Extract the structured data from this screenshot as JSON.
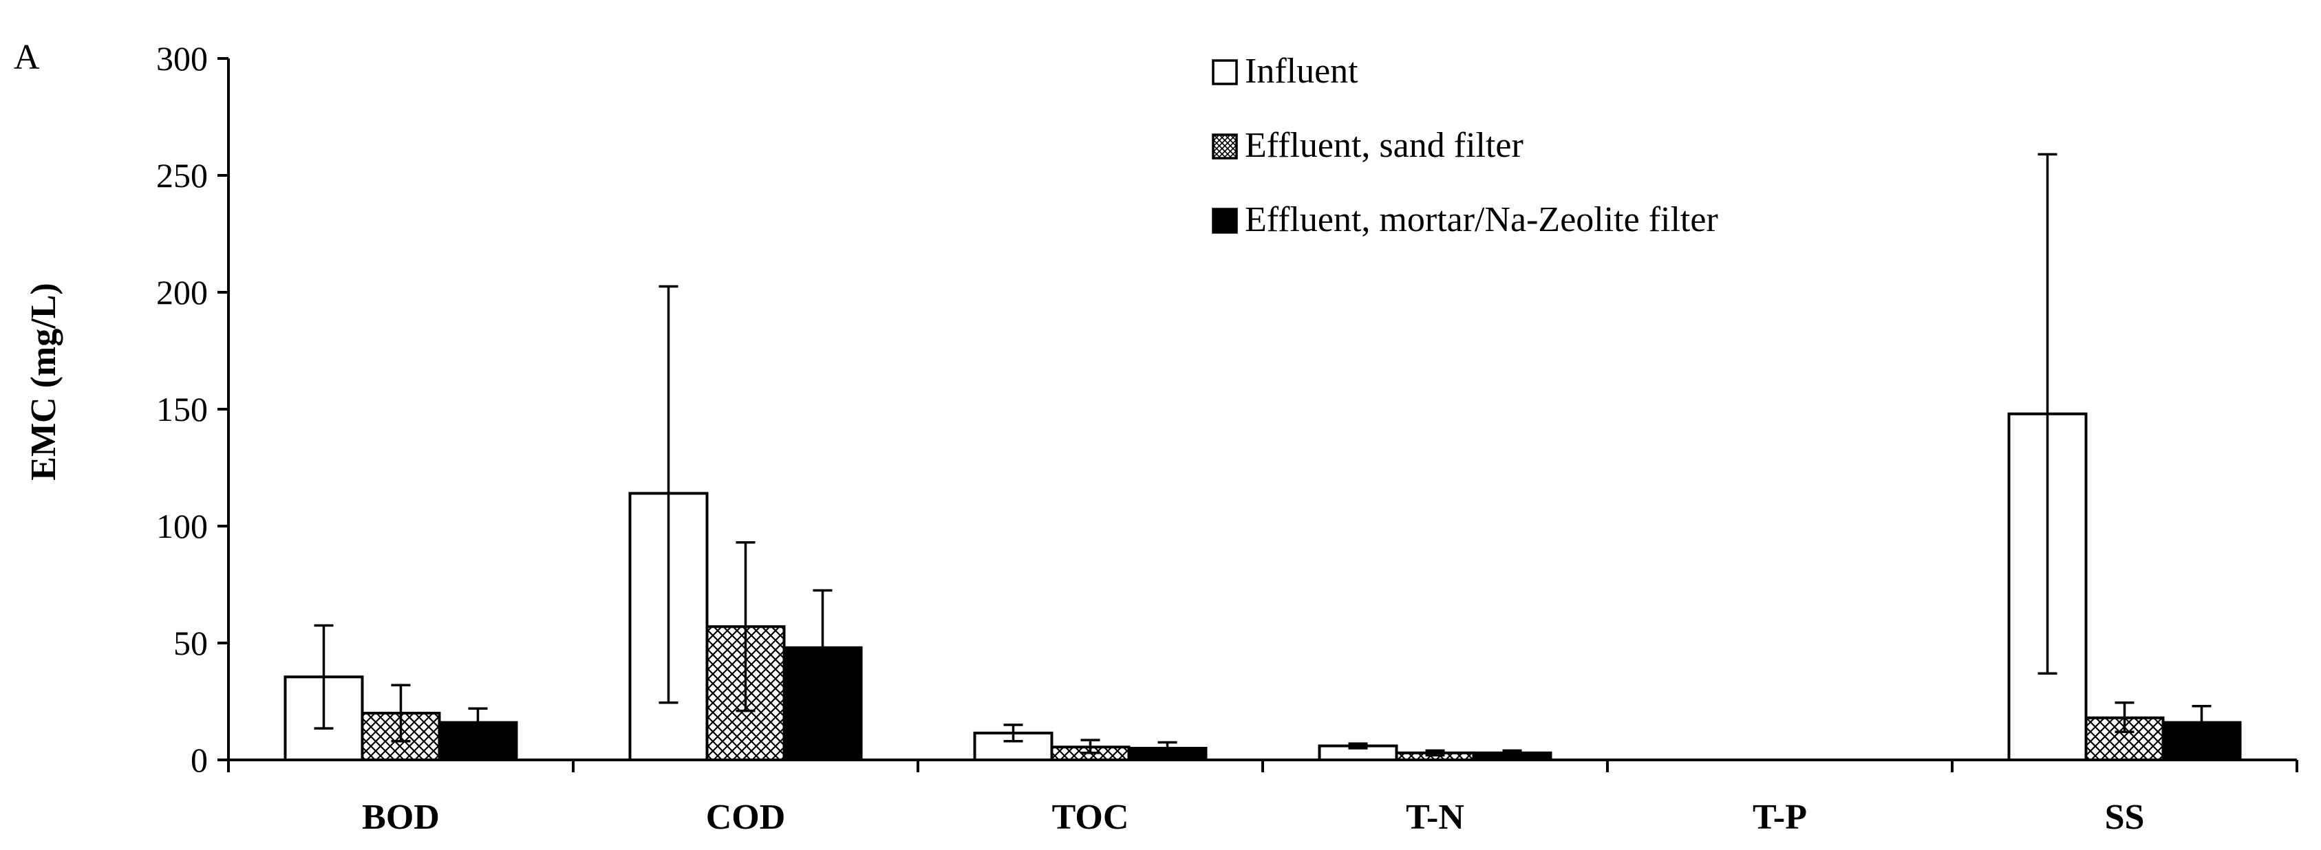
{
  "chart_data": {
    "type": "bar",
    "panel_label": "A",
    "title": "",
    "xlabel": "",
    "ylabel": "EMC (mg/L)",
    "ylim": [
      0,
      300
    ],
    "yticks": [
      0,
      50,
      100,
      150,
      200,
      250,
      300
    ],
    "grid": false,
    "legend_position": "top-center",
    "categories": [
      "BOD",
      "COD",
      "TOC",
      "T-N",
      "T-P",
      "SS"
    ],
    "series": [
      {
        "name": "Influent",
        "fill": "white",
        "values": [
          35.5,
          114,
          11.5,
          6,
          0,
          148
        ],
        "error_low": [
          13.5,
          24.5,
          8,
          5,
          0,
          37
        ],
        "error_high": [
          57.5,
          202.5,
          15,
          7,
          0,
          259
        ]
      },
      {
        "name": "Effluent, sand filter",
        "fill": "crosshatch",
        "values": [
          20,
          57,
          5.5,
          3,
          0,
          18
        ],
        "error_low": [
          8,
          21,
          3,
          2,
          0,
          12
        ],
        "error_high": [
          32,
          93,
          8.5,
          4,
          0,
          24.5
        ]
      },
      {
        "name": "Effluent, mortar/Na-Zeolite filter",
        "fill": "black",
        "values": [
          16,
          48,
          5,
          3,
          0,
          16
        ],
        "error_low": [
          10,
          23,
          3,
          2,
          0,
          10
        ],
        "error_high": [
          22,
          72.5,
          7.5,
          4,
          0,
          23
        ]
      }
    ]
  }
}
